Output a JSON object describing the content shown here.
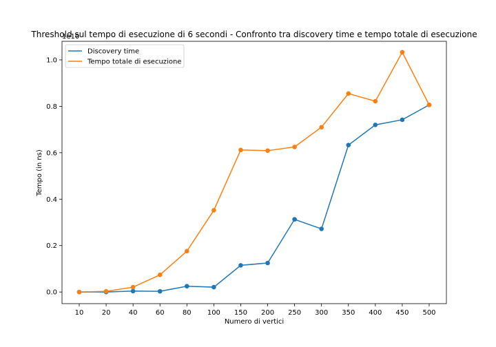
{
  "chart_data": {
    "type": "line",
    "title": "Threshold sul tempo di esecuzione di 6 secondi - Confronto tra discovery time e tempo totale di esecuzione",
    "xlabel": "Numero di vertici",
    "ylabel": "Tempo (in ns)",
    "offset_label": "1e10",
    "categories": [
      "10",
      "20",
      "40",
      "60",
      "80",
      "100",
      "150",
      "200",
      "250",
      "300",
      "350",
      "400",
      "450",
      "500"
    ],
    "yticks": [
      "0.0",
      "0.2",
      "0.4",
      "0.6",
      "0.8",
      "1.0"
    ],
    "ytick_values": [
      0.0,
      0.2,
      0.4,
      0.6,
      0.8,
      1.0
    ],
    "ylim": [
      -0.05,
      1.08
    ],
    "legend_position": "upper-left",
    "series": [
      {
        "name": "Discovery time",
        "color": "#1f77b4",
        "values": [
          0.0,
          0.0,
          0.004,
          0.003,
          0.025,
          0.021,
          0.115,
          0.125,
          0.313,
          0.272,
          0.633,
          0.72,
          0.742,
          0.806
        ]
      },
      {
        "name": "Tempo totale di esecuzione",
        "color": "#ff7f0e",
        "values": [
          0.0,
          0.003,
          0.021,
          0.074,
          0.176,
          0.352,
          0.612,
          0.609,
          0.625,
          0.71,
          0.855,
          0.822,
          1.033,
          0.806
        ]
      }
    ]
  }
}
